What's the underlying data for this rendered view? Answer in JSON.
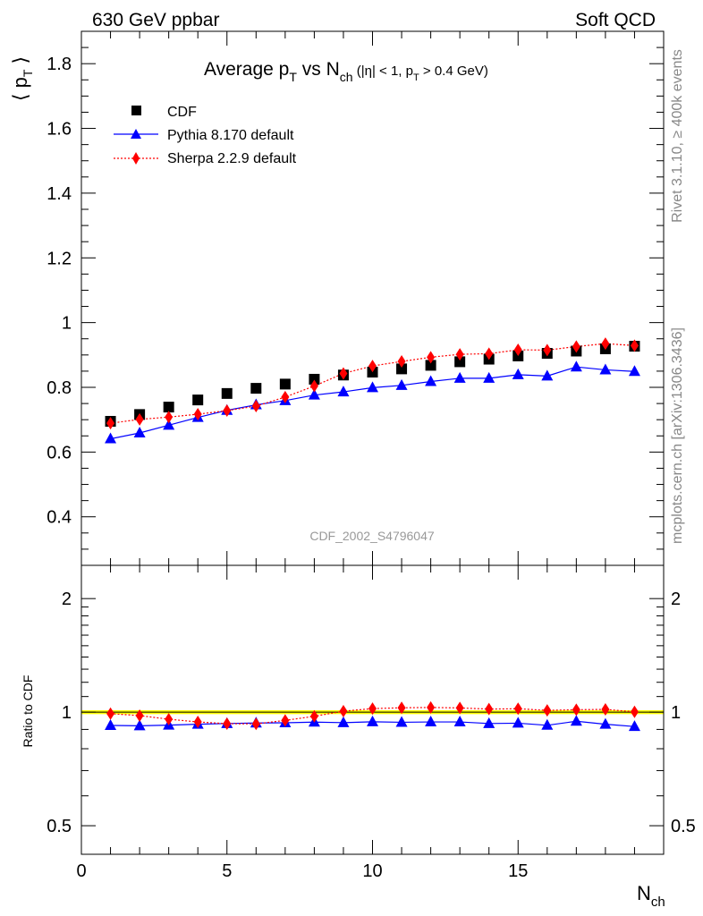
{
  "header": {
    "left": "630 GeV ppbar",
    "right": "Soft QCD"
  },
  "side_labels": {
    "top": "Rivet 3.1.10, ≥ 400k events",
    "bottom": "mcplots.cern.ch [arXiv:1306.3436]"
  },
  "watermark": "CDF_2002_S4796047",
  "colors": {
    "cdf": "#000000",
    "pythia": "#0000ff",
    "sherpa": "#ff0000",
    "band": "#ffff00",
    "band_edge": "#00aa00"
  },
  "chart_data": [
    {
      "type": "scatter",
      "title": "Average p_T vs N_ch",
      "title_parts": {
        "main": "Average p",
        "sub1": "T",
        "mid": " vs N",
        "sub2": "ch",
        "cut_a": " (|η| < 1, p",
        "cut_sub": "T",
        "cut_b": " > 0.4 GeV)"
      },
      "ylabel": "⟨ p_T ⟩",
      "ylabel_parts": {
        "left": "⟨ p",
        "sub": "T",
        "right": " ⟩"
      },
      "xlim": [
        0,
        20
      ],
      "ylim": [
        0.25,
        1.9
      ],
      "yticks": [
        0.4,
        0.6,
        0.8,
        1.0,
        1.2,
        1.4,
        1.6,
        1.8
      ],
      "ytick_labels": [
        "0.4",
        "0.6",
        "0.8",
        "1",
        "1.2",
        "1.4",
        "1.6",
        "1.8"
      ],
      "legend_position": "top-left",
      "x": [
        1,
        2,
        3,
        4,
        5,
        6,
        7,
        8,
        9,
        10,
        11,
        12,
        13,
        14,
        15,
        16,
        17,
        18,
        19
      ],
      "series": [
        {
          "name": "CDF",
          "marker": "square",
          "values": [
            0.695,
            0.716,
            0.739,
            0.761,
            0.781,
            0.797,
            0.81,
            0.825,
            0.838,
            0.847,
            0.857,
            0.868,
            0.879,
            0.887,
            0.897,
            0.905,
            0.912,
            0.919,
            0.927
          ]
        },
        {
          "name": "Pythia 8.170 default",
          "marker": "triangle",
          "values": [
            0.641,
            0.659,
            0.683,
            0.707,
            0.729,
            0.746,
            0.759,
            0.776,
            0.786,
            0.799,
            0.806,
            0.818,
            0.828,
            0.828,
            0.839,
            0.835,
            0.863,
            0.854,
            0.849
          ]
        },
        {
          "name": "Sherpa 2.2.9 default",
          "marker": "diamond",
          "values": [
            0.689,
            0.701,
            0.708,
            0.717,
            0.728,
            0.742,
            0.77,
            0.804,
            0.843,
            0.866,
            0.88,
            0.893,
            0.902,
            0.904,
            0.916,
            0.915,
            0.926,
            0.935,
            0.929
          ]
        }
      ]
    },
    {
      "type": "scatter",
      "ylabel": "Ratio to CDF",
      "xlabel": "N_ch",
      "xlabel_parts": {
        "main": "N",
        "sub": "ch"
      },
      "xlim": [
        0,
        20
      ],
      "ylim": [
        0.42,
        2.45
      ],
      "log_y": true,
      "yticks": [
        0.5,
        1,
        2
      ],
      "ytick_labels": [
        "0.5",
        "1",
        "2"
      ],
      "xticks": [
        0,
        5,
        10,
        15
      ],
      "xtick_labels": [
        "0",
        "5",
        "10",
        "15"
      ],
      "x": [
        1,
        2,
        3,
        4,
        5,
        6,
        7,
        8,
        9,
        10,
        11,
        12,
        13,
        14,
        15,
        16,
        17,
        18,
        19
      ],
      "series": [
        {
          "name": "Pythia 8.170 default",
          "marker": "triangle",
          "values": [
            0.922,
            0.92,
            0.924,
            0.929,
            0.933,
            0.936,
            0.937,
            0.941,
            0.938,
            0.943,
            0.94,
            0.942,
            0.942,
            0.933,
            0.935,
            0.923,
            0.946,
            0.929,
            0.916
          ]
        },
        {
          "name": "Sherpa 2.2.9 default",
          "marker": "diamond",
          "values": [
            0.991,
            0.979,
            0.958,
            0.942,
            0.932,
            0.931,
            0.951,
            0.975,
            1.006,
            1.022,
            1.027,
            1.029,
            1.026,
            1.019,
            1.021,
            1.011,
            1.015,
            1.017,
            1.002
          ]
        }
      ]
    }
  ]
}
